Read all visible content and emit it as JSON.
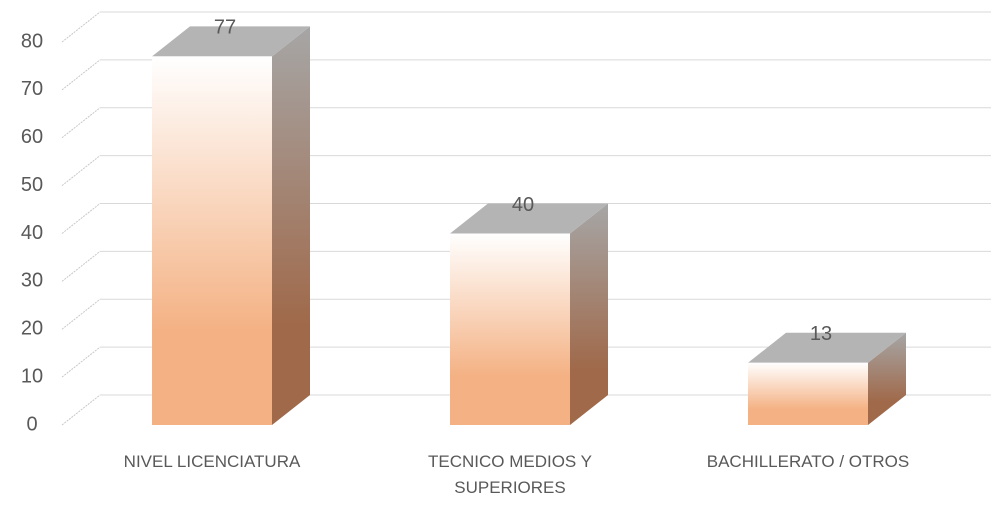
{
  "chart_data": {
    "type": "bar3d",
    "categories": [
      "NIVEL LICENCIATURA",
      "TECNICO MEDIOS Y SUPERIORES",
      "BACHILLERATO / OTROS"
    ],
    "values": [
      77,
      40,
      13
    ],
    "color": "#f4b183",
    "ylim": [
      0,
      80
    ],
    "yticks": [
      0,
      10,
      20,
      30,
      40,
      50,
      60,
      70,
      80
    ],
    "grid": true
  }
}
